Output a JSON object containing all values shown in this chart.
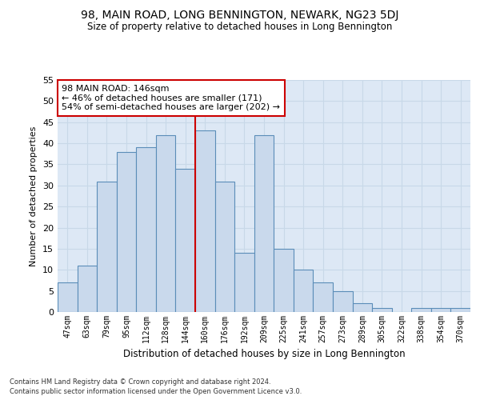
{
  "title": "98, MAIN ROAD, LONG BENNINGTON, NEWARK, NG23 5DJ",
  "subtitle": "Size of property relative to detached houses in Long Bennington",
  "xlabel": "Distribution of detached houses by size in Long Bennington",
  "ylabel": "Number of detached properties",
  "categories": [
    "47sqm",
    "63sqm",
    "79sqm",
    "95sqm",
    "112sqm",
    "128sqm",
    "144sqm",
    "160sqm",
    "176sqm",
    "192sqm",
    "209sqm",
    "225sqm",
    "241sqm",
    "257sqm",
    "273sqm",
    "289sqm",
    "305sqm",
    "322sqm",
    "338sqm",
    "354sqm",
    "370sqm"
  ],
  "values": [
    7,
    11,
    31,
    38,
    39,
    42,
    34,
    43,
    31,
    14,
    42,
    15,
    10,
    7,
    5,
    2,
    1,
    0,
    1,
    1,
    1
  ],
  "bar_color": "#c9d9ec",
  "bar_edge_color": "#5b8db8",
  "vline_color": "#cc0000",
  "vline_x_index": 6,
  "annotation_text": "98 MAIN ROAD: 146sqm\n← 46% of detached houses are smaller (171)\n54% of semi-detached houses are larger (202) →",
  "annotation_box_color": "#ffffff",
  "annotation_box_edge": "#cc0000",
  "ylim": [
    0,
    55
  ],
  "yticks": [
    0,
    5,
    10,
    15,
    20,
    25,
    30,
    35,
    40,
    45,
    50,
    55
  ],
  "grid_color": "#c8d8e8",
  "background_color": "#dde8f5",
  "footnote1": "Contains HM Land Registry data © Crown copyright and database right 2024.",
  "footnote2": "Contains public sector information licensed under the Open Government Licence v3.0."
}
